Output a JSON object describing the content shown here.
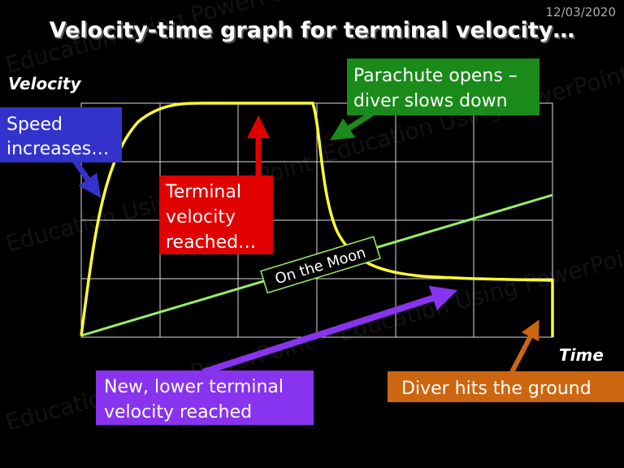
{
  "date": "12/03/2020",
  "title": "Velocity-time graph for terminal velocity…",
  "axes": {
    "y_label": "Velocity",
    "x_label": "Time"
  },
  "watermark": "Education Using PowerPoint",
  "annotations": {
    "speed": [
      "Speed",
      "increases…"
    ],
    "terminal": [
      "Terminal",
      "velocity",
      "reached…"
    ],
    "parachute": [
      "Parachute opens –",
      "diver slows down"
    ],
    "moon": "On the Moon",
    "lower": [
      "New, lower terminal",
      "velocity reached"
    ],
    "ground": "Diver hits the ground"
  }
}
